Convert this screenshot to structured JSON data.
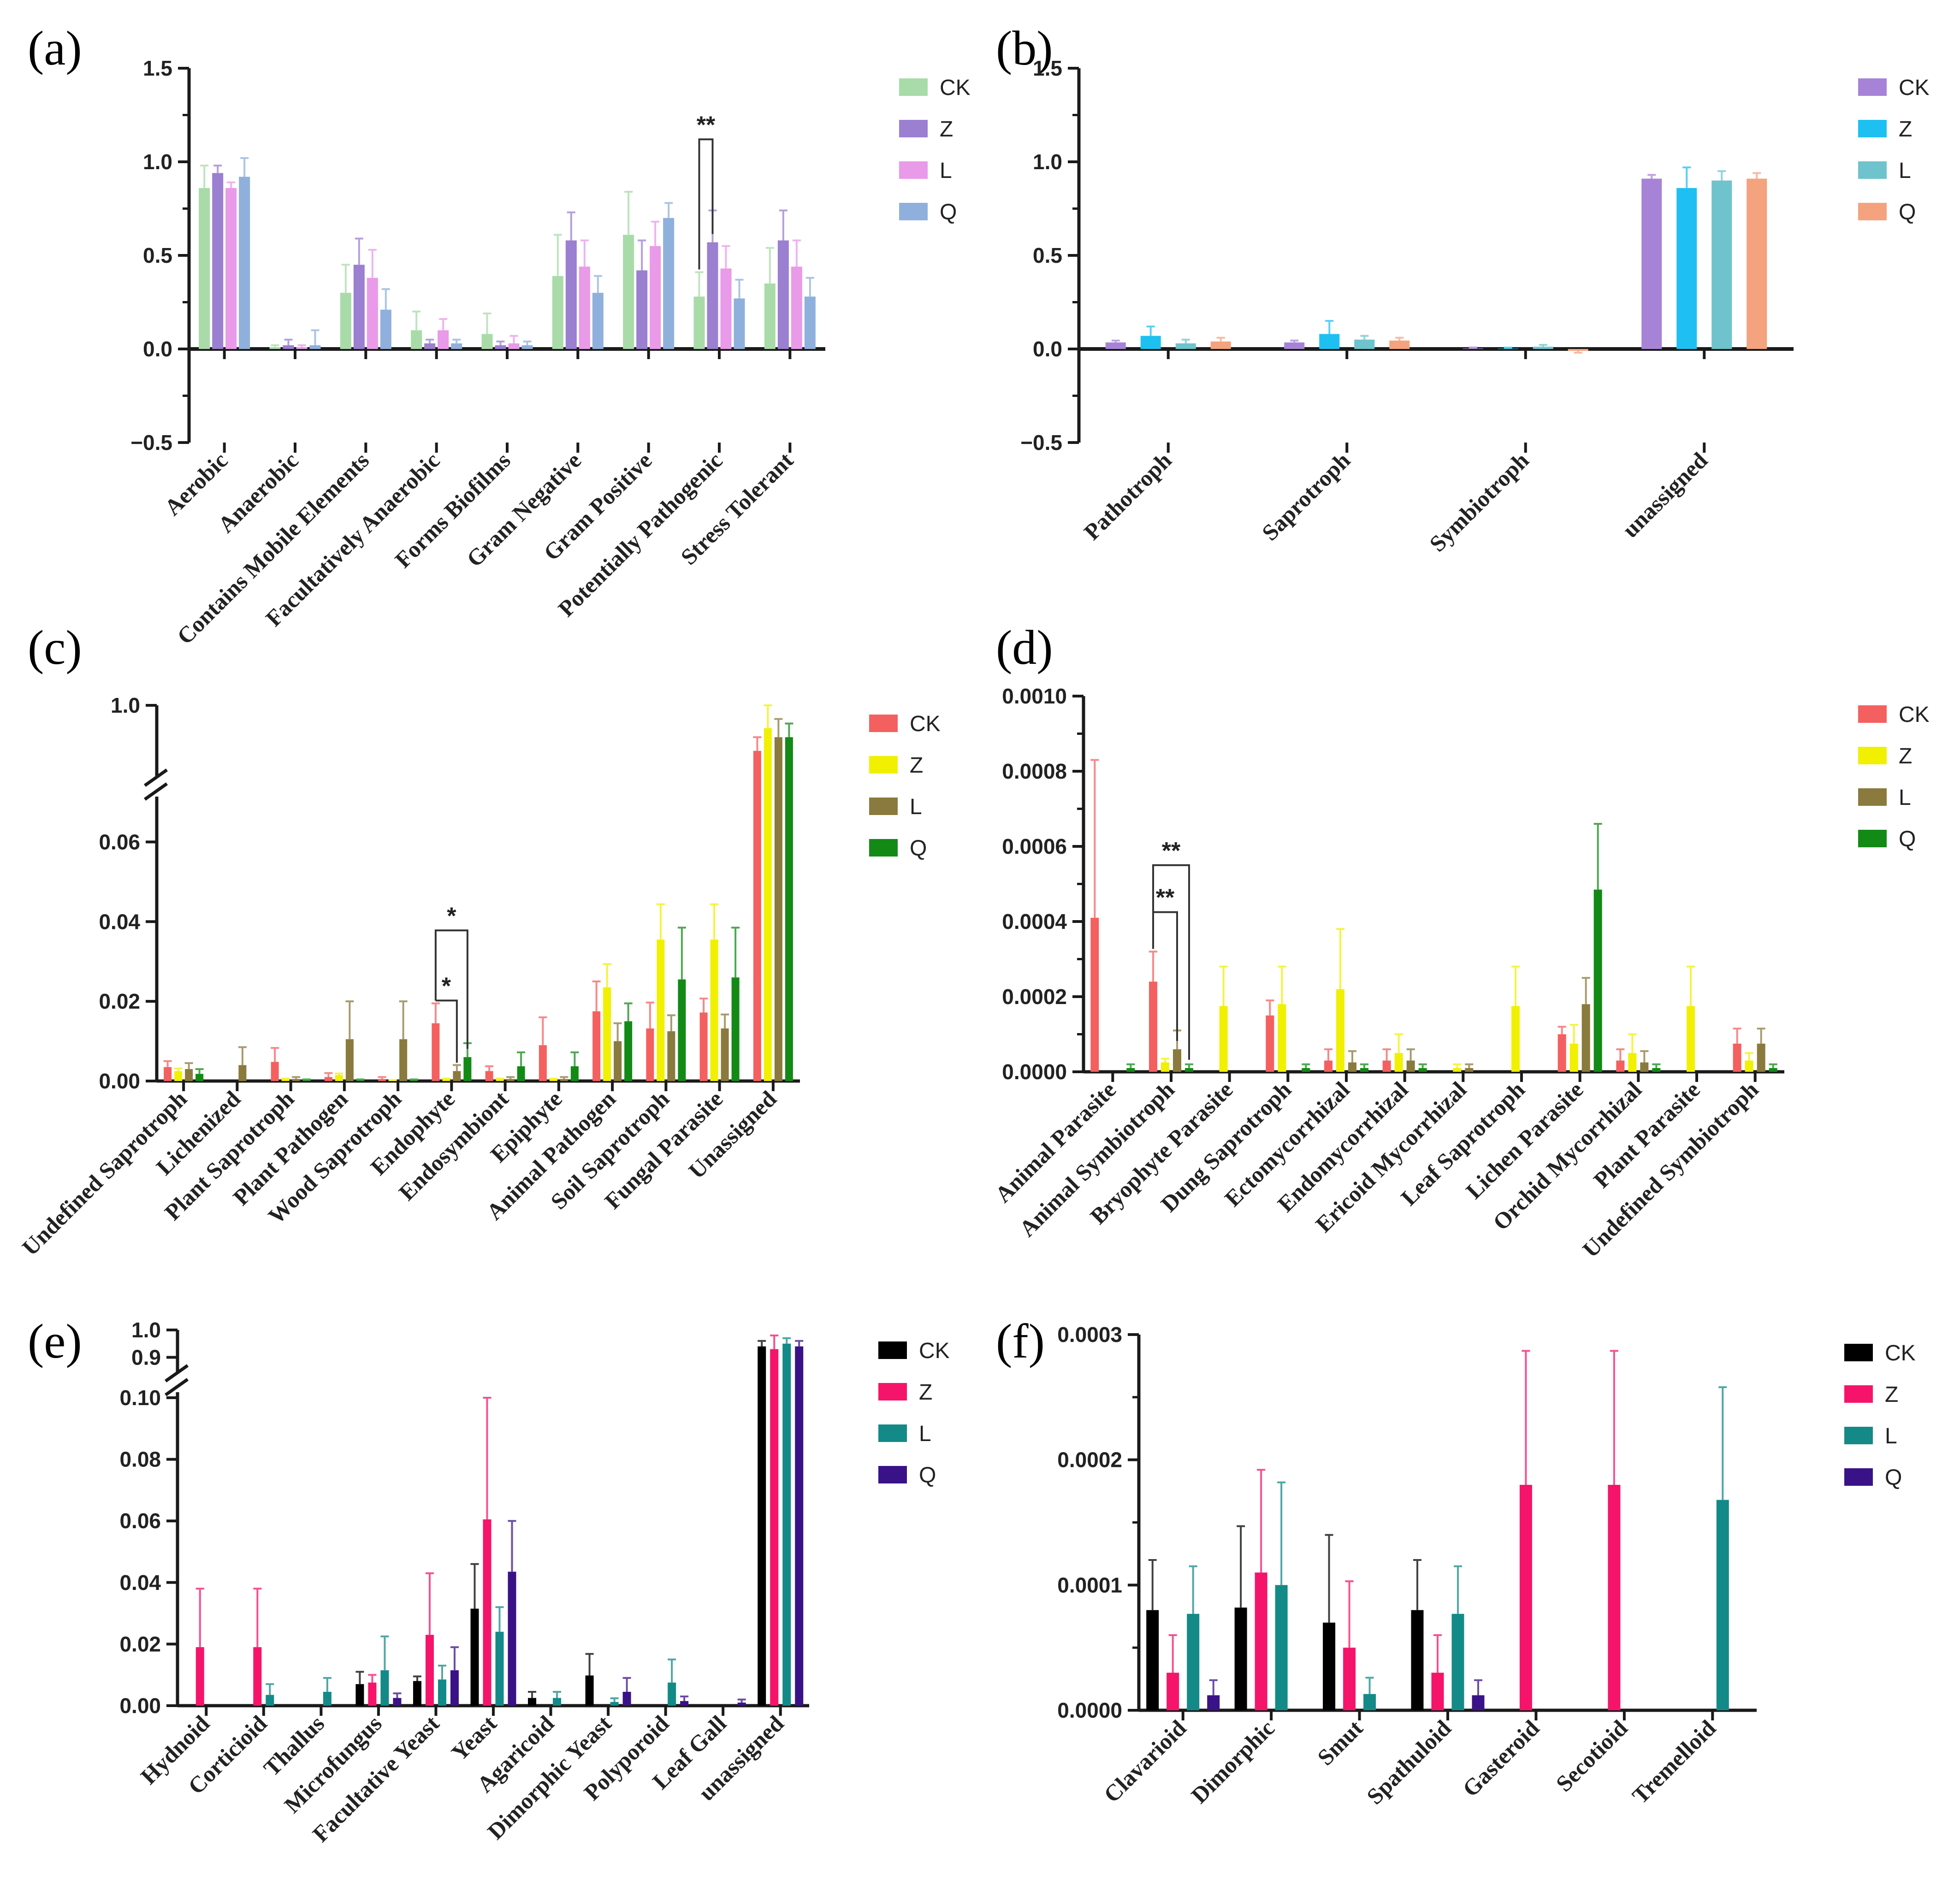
{
  "colors": {
    "a": [
      "#a8dba8",
      "#9b7fd1",
      "#e99ae8",
      "#8fb0dc"
    ],
    "b": [
      "#a783d8",
      "#1ec0f2",
      "#6ec3cc",
      "#f4a37e"
    ],
    "c": [
      "#f4605f",
      "#f0f000",
      "#8a7a3d",
      "#138a16"
    ],
    "d": [
      "#f4605f",
      "#f0f000",
      "#8a7a3d",
      "#138a16"
    ],
    "e": [
      "#000000",
      "#f5146a",
      "#138a87",
      "#3a1287"
    ],
    "f": [
      "#000000",
      "#f5146a",
      "#138a87",
      "#3a1287"
    ]
  },
  "chart_data": [
    {
      "id": "a",
      "panel_label": "(a)",
      "type": "bar",
      "legend": [
        "CK",
        "Z",
        "L",
        "Q"
      ],
      "legend_position": "top-right",
      "ylim": [
        -0.5,
        1.5
      ],
      "yticks": [
        "1.5",
        "1.0",
        "0.5",
        "0.0",
        "−0.5"
      ],
      "categories": [
        "Aerobic",
        "Anaerobic",
        "Contains Mobile Elements",
        "Facultatively Anaerobic",
        "Forms Biofilms",
        "Gram Negative",
        "Gram Positive",
        "Potentially Pathogenic",
        "Stress Tolerant"
      ],
      "series": [
        {
          "name": "CK",
          "values": [
            0.86,
            0.01,
            0.3,
            0.1,
            0.08,
            0.39,
            0.61,
            0.28,
            0.35
          ],
          "errors": [
            0.12,
            0.01,
            0.15,
            0.1,
            0.11,
            0.22,
            0.23,
            0.13,
            0.19
          ]
        },
        {
          "name": "Z",
          "values": [
            0.94,
            0.02,
            0.45,
            0.03,
            0.02,
            0.58,
            0.42,
            0.57,
            0.58
          ],
          "errors": [
            0.04,
            0.03,
            0.14,
            0.02,
            0.02,
            0.15,
            0.16,
            0.17,
            0.16
          ]
        },
        {
          "name": "L",
          "values": [
            0.86,
            0.01,
            0.38,
            0.1,
            0.03,
            0.44,
            0.55,
            0.43,
            0.44
          ],
          "errors": [
            0.03,
            0.01,
            0.15,
            0.06,
            0.04,
            0.14,
            0.13,
            0.12,
            0.14
          ]
        },
        {
          "name": "Q",
          "values": [
            0.92,
            0.02,
            0.21,
            0.03,
            0.02,
            0.3,
            0.7,
            0.27,
            0.28
          ],
          "errors": [
            0.1,
            0.08,
            0.11,
            0.02,
            0.02,
            0.09,
            0.08,
            0.1,
            0.1
          ]
        }
      ],
      "annotations": [
        {
          "category": 7,
          "from": 0,
          "to": 1,
          "text": "**",
          "y": 1.12
        }
      ]
    },
    {
      "id": "b",
      "panel_label": "(b)",
      "type": "bar",
      "legend": [
        "CK",
        "Z",
        "L",
        "Q"
      ],
      "legend_position": "top-right",
      "ylim": [
        -0.5,
        1.5
      ],
      "yticks": [
        "1.5",
        "1.0",
        "0.5",
        "0.0",
        "−0.5"
      ],
      "categories": [
        "Pathotroph",
        "Saprotroph",
        "Symbiotroph",
        "unassigned"
      ],
      "series": [
        {
          "name": "CK",
          "values": [
            0.035,
            0.035,
            0.003,
            0.91
          ],
          "errors": [
            0.01,
            0.01,
            0.005,
            0.02
          ]
        },
        {
          "name": "Z",
          "values": [
            0.07,
            0.08,
            0.002,
            0.86
          ],
          "errors": [
            0.05,
            0.07,
            0.005,
            0.11
          ]
        },
        {
          "name": "L",
          "values": [
            0.03,
            0.05,
            0.012,
            0.9
          ],
          "errors": [
            0.02,
            0.02,
            0.01,
            0.05
          ]
        },
        {
          "name": "Q",
          "values": [
            0.04,
            0.045,
            -0.01,
            0.91
          ],
          "errors": [
            0.02,
            0.015,
            0.01,
            0.03
          ]
        }
      ],
      "annotations": []
    },
    {
      "id": "c",
      "panel_label": "(c)",
      "type": "bar",
      "axis_break": true,
      "legend": [
        "CK",
        "Z",
        "L",
        "Q"
      ],
      "legend_position": "top-right",
      "ylim_lower": [
        0,
        0.07
      ],
      "yticks_lower": [
        "0.00",
        "0.02",
        "0.04",
        "0.06"
      ],
      "ytick_upper": "1.0",
      "categories": [
        "Undefined Saprotroph",
        "Lichenized",
        "Plant Saprotroph",
        "Plant Pathogen",
        "Wood Saprotroph",
        "Endophyte",
        "Endosymbiont",
        "Epiphyte",
        "Animal Pathogen",
        "Soil Saprotroph",
        "Fungal Parasite",
        "Unassigned"
      ],
      "series": [
        {
          "name": "CK",
          "values": [
            0.0035,
            0.0,
            0.0048,
            0.001,
            0.0005,
            0.0145,
            0.0025,
            0.009,
            0.0175,
            0.0132,
            0.0172,
            0.9
          ],
          "errors": [
            0.0015,
            0.0,
            0.0035,
            0.001,
            0.0005,
            0.005,
            0.0012,
            0.007,
            0.0075,
            0.0065,
            0.0035,
            0.03
          ]
        },
        {
          "name": "Z",
          "values": [
            0.0025,
            0.0,
            0.0005,
            0.0015,
            0.0002,
            0.0005,
            0.0005,
            0.0005,
            0.0235,
            0.0355,
            0.0355,
            0.95
          ]
        },
        {
          "name": "L",
          "values": [
            0.003,
            0.004,
            0.0005,
            0.0105,
            0.0105,
            0.0025,
            0.0005,
            0.0005,
            0.01,
            0.0125,
            0.0132,
            0.93
          ],
          "errors": [
            0.0015,
            0.0045,
            0.0005,
            0.0095,
            0.0095,
            0.0015,
            0.0005,
            0.0005,
            0.0045,
            0.004,
            0.0035,
            0.04
          ]
        },
        {
          "name": "Q",
          "values": [
            0.0018,
            0.0,
            0.0002,
            0.0002,
            0.0002,
            0.006,
            0.0037,
            0.0037,
            0.015,
            0.0255,
            0.026,
            0.93
          ],
          "errors": [
            0.0012,
            0.0,
            0.0002,
            0.0002,
            0.0002,
            0.0035,
            0.0035,
            0.0035,
            0.0045,
            0.013,
            0.0125,
            0.03
          ]
        }
      ],
      "annotations": [
        {
          "category": 5,
          "from": 0,
          "to": 2,
          "text": "*",
          "y": 0.0202
        },
        {
          "category": 5,
          "from": 0,
          "to": 3,
          "text": "*",
          "y": 0.0378
        }
      ]
    },
    {
      "id": "d",
      "panel_label": "(d)",
      "type": "bar",
      "legend": [
        "CK",
        "Z",
        "L",
        "Q"
      ],
      "legend_position": "top-right",
      "ylim": [
        0,
        0.001
      ],
      "yticks": [
        "0.0000",
        "0.0002",
        "0.0004",
        "0.0006",
        "0.0008",
        "0.0010"
      ],
      "categories": [
        "Animal Parasite",
        "Animal Symbiotroph",
        "Bryophyte Parasite",
        "Dung Saprotroph",
        "Ectomycorrhizal",
        "Endomycorrhizal",
        "Ericoid Mycorrhizal",
        "Leaf Saprotroph",
        "Lichen Parasite",
        "Orchid Mycorrhizal",
        "Plant Parasite",
        "Undefined Symbiotroph"
      ],
      "series": [
        {
          "name": "CK",
          "values": [
            0.00041,
            0.00024,
            0.0,
            0.00015,
            3e-05,
            3e-05,
            0.0,
            0.0,
            0.0001,
            3e-05,
            0.0,
            7.5e-05
          ],
          "errors": [
            0.00042,
            8e-05,
            0.0,
            4e-05,
            3e-05,
            3e-05,
            0.0,
            0.0,
            2e-05,
            3e-05,
            0.0,
            4e-05
          ]
        },
        {
          "name": "Z",
          "values": [
            0.0,
            2.5e-05,
            0.000175,
            0.00018,
            0.00022,
            5e-05,
            1e-05,
            0.000175,
            7.5e-05,
            5e-05,
            0.000175,
            3e-05
          ],
          "errors": [
            0.0,
            1e-05,
            0.000105,
            0.0001,
            0.00016,
            5e-05,
            1e-05,
            0.000105,
            5e-05,
            5e-05,
            0.000105,
            2e-05
          ]
        },
        {
          "name": "L",
          "values": [
            0.0,
            6e-05,
            0.0,
            0.0,
            2.5e-05,
            3e-05,
            1e-05,
            0.0,
            0.00018,
            2.5e-05,
            0.0,
            7.5e-05
          ],
          "errors": [
            0.0,
            5e-05,
            0.0,
            0.0,
            3e-05,
            3e-05,
            1e-05,
            0.0,
            7e-05,
            3e-05,
            0.0,
            4e-05
          ]
        },
        {
          "name": "Q",
          "values": [
            1e-05,
            1e-05,
            0.0,
            1e-05,
            1e-05,
            1e-05,
            0.0,
            0.0,
            0.000485,
            1e-05,
            0.0,
            1e-05
          ],
          "errors": [
            1e-05,
            1e-05,
            0.0,
            1e-05,
            1e-05,
            1e-05,
            0.0,
            0.0,
            0.000175,
            1e-05,
            0.0,
            1e-05
          ]
        }
      ],
      "annotations": [
        {
          "category": 1,
          "from": 0,
          "to": 2,
          "text": "**",
          "y": 0.000425
        },
        {
          "category": 1,
          "from": 0,
          "to": 3,
          "text": "**",
          "y": 0.00055
        }
      ]
    },
    {
      "id": "e",
      "panel_label": "(e)",
      "type": "bar",
      "axis_break": true,
      "legend": [
        "CK",
        "Z",
        "L",
        "Q"
      ],
      "legend_position": "top-right",
      "ylim_lower": [
        0,
        0.1
      ],
      "yticks_lower": [
        "0.00",
        "0.02",
        "0.04",
        "0.06",
        "0.08",
        "0.10"
      ],
      "yticks_upper": [
        "0.9",
        "1.0"
      ],
      "categories": [
        "Hydnoid",
        "Corticioid",
        "Thallus",
        "Microfungus",
        "Facultative Yeast",
        "Yeast",
        "Agaricoid",
        "Dimorphic Yeast",
        "Polyporoid",
        "Leaf Gall",
        "unassigned"
      ],
      "series": [
        {
          "name": "CK",
          "values": [
            0.0,
            0.0,
            0.0,
            0.007,
            0.008,
            0.0315,
            0.0025,
            0.0098,
            0.0,
            0.0,
            0.94
          ],
          "errors": [
            0.0,
            0.0,
            0.0,
            0.004,
            0.0015,
            0.0145,
            0.002,
            0.007,
            0.0,
            0.0,
            0.02
          ]
        },
        {
          "name": "Z",
          "values": [
            0.019,
            0.019,
            0.0,
            0.0075,
            0.023,
            0.0605,
            0.0,
            0.0,
            0.0,
            0.0,
            0.93
          ],
          "errors": [
            0.019,
            0.019,
            0.0,
            0.0025,
            0.02,
            0.0395,
            0.0,
            0.0,
            0.0,
            0.0,
            0.05
          ]
        },
        {
          "name": "L",
          "values": [
            0.0,
            0.0035,
            0.0045,
            0.0115,
            0.0085,
            0.024,
            0.0025,
            0.0012,
            0.0075,
            0.0,
            0.95
          ],
          "errors": [
            0.0,
            0.0035,
            0.0045,
            0.011,
            0.0045,
            0.008,
            0.002,
            0.0012,
            0.0075,
            0.0,
            0.02
          ]
        },
        {
          "name": "Q",
          "values": [
            0.0,
            0.0,
            0.0,
            0.0025,
            0.0115,
            0.0435,
            0.0,
            0.0045,
            0.0015,
            0.001,
            0.94
          ],
          "errors": [
            0.0,
            0.0,
            0.0,
            0.0015,
            0.0075,
            0.0165,
            0.0,
            0.0045,
            0.0015,
            0.001,
            0.02
          ]
        }
      ],
      "annotations": []
    },
    {
      "id": "f",
      "panel_label": "(f)",
      "type": "bar",
      "legend": [
        "CK",
        "Z",
        "L",
        "Q"
      ],
      "legend_position": "top-right",
      "ylim": [
        0,
        0.0003
      ],
      "yticks": [
        "0.0000",
        "0.0001",
        "0.0002",
        "0.0003"
      ],
      "categories": [
        "Clavarioid",
        "Dimorphic",
        "Smut",
        "Spathuloid",
        "Gasteroid",
        "Secotioid",
        "Tremelloid"
      ],
      "series": [
        {
          "name": "CK",
          "values": [
            8e-05,
            8.2e-05,
            7e-05,
            8e-05,
            0.0,
            0.0,
            0.0
          ],
          "errors": [
            4e-05,
            6.5e-05,
            7e-05,
            4e-05,
            0.0,
            0.0,
            0.0
          ]
        },
        {
          "name": "Z",
          "values": [
            3e-05,
            0.00011,
            5e-05,
            3e-05,
            0.00018,
            0.00018,
            0.0
          ],
          "errors": [
            3e-05,
            8.2e-05,
            5.3e-05,
            3e-05,
            0.000107,
            0.000107,
            0.0
          ]
        },
        {
          "name": "L",
          "values": [
            7.7e-05,
            0.0001,
            1.3e-05,
            7.7e-05,
            0.0,
            0.0,
            0.000168
          ],
          "errors": [
            3.8e-05,
            8.2e-05,
            1.3e-05,
            3.8e-05,
            0.0,
            0.0,
            9e-05
          ]
        },
        {
          "name": "Q",
          "values": [
            1.2e-05,
            0.0,
            0.0,
            1.2e-05,
            0.0,
            0.0,
            0.0
          ],
          "errors": [
            1.2e-05,
            0.0,
            0.0,
            1.2e-05,
            0.0,
            0.0,
            0.0
          ]
        }
      ],
      "annotations": []
    }
  ]
}
